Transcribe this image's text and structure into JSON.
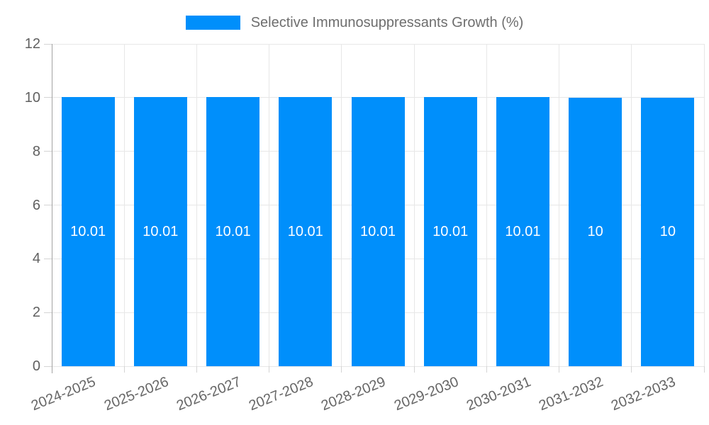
{
  "chart_data": {
    "type": "bar",
    "title": "Selective Immunosuppressants Growth (%)",
    "categories": [
      "2024-2025",
      "2025-2026",
      "2026-2027",
      "2027-2028",
      "2028-2029",
      "2029-2030",
      "2030-2031",
      "2031-2032",
      "2032-2033"
    ],
    "values": [
      10.01,
      10.01,
      10.01,
      10.01,
      10.01,
      10.01,
      10.01,
      10,
      10
    ],
    "value_labels": [
      "10.01",
      "10.01",
      "10.01",
      "10.01",
      "10.01",
      "10.01",
      "10.01",
      "10",
      "10"
    ],
    "xlabel": "",
    "ylabel": "",
    "ylim": [
      0,
      12
    ],
    "yticks": [
      0,
      2,
      4,
      6,
      8,
      10,
      12
    ],
    "ytick_labels": [
      "0",
      "2",
      "4",
      "6",
      "8",
      "10",
      "12"
    ],
    "grid": "both",
    "legend_position": "top",
    "colors": {
      "bar": "#008FFB",
      "grid": "#e7e7e7",
      "axis": "#a3a3a3",
      "tick": "#d4d4d4",
      "bar_label_text": "#ffffff",
      "axis_text": "#606060",
      "legend_text": "#6e6e6e",
      "background": "#ffffff"
    }
  }
}
